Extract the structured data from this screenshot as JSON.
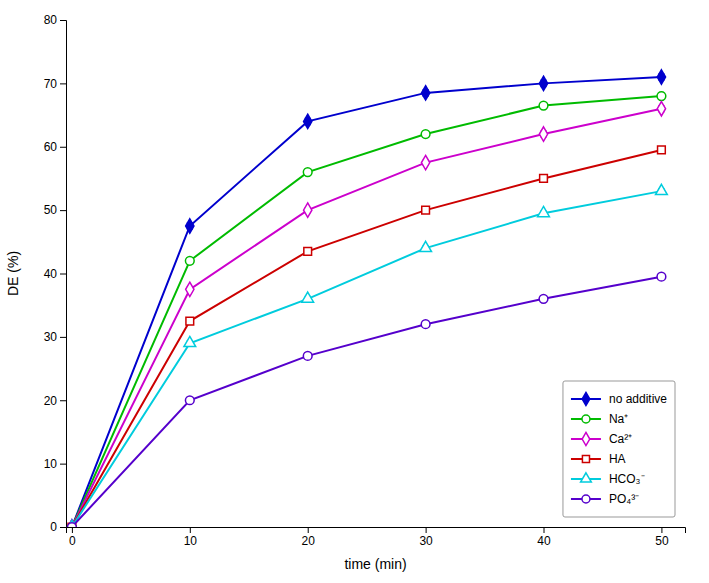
{
  "chart_data": {
    "type": "line",
    "x_label": "time (min)",
    "y_label": "DE (%)",
    "x": [
      0,
      10,
      20,
      30,
      40,
      50
    ],
    "xlim": [
      -0.5,
      52
    ],
    "xticks": [
      0,
      10,
      20,
      30,
      40,
      50
    ],
    "ylim": [
      0,
      80
    ],
    "yticks": [
      0,
      10,
      20,
      30,
      40,
      50,
      60,
      70,
      80
    ],
    "grid": false,
    "legend": "lower right",
    "series": [
      {
        "name": "no additive",
        "color": "#0000CD",
        "marker": "diamond",
        "line_style": "solid",
        "values": [
          0,
          47.5,
          64.0,
          68.5,
          70.0,
          71.0
        ],
        "error": [
          0,
          0.5,
          0.5,
          0.5,
          0.5,
          0.5
        ]
      },
      {
        "name": "Na⁺",
        "color": "#00BB00",
        "marker": "circle-open",
        "line_style": "solid",
        "values": [
          0,
          42.0,
          56.0,
          62.0,
          66.5,
          68.0
        ],
        "error": [
          0,
          0.4,
          0.4,
          0.4,
          0.4,
          0.4
        ]
      },
      {
        "name": "Ca²⁺",
        "color": "#CC00CC",
        "marker": "diamond-open",
        "line_style": "solid",
        "values": [
          0,
          37.5,
          50.0,
          57.5,
          62.0,
          66.0
        ],
        "error": [
          0,
          0.4,
          0.4,
          0.4,
          0.5,
          0.5
        ]
      },
      {
        "name": "HA",
        "color": "#CC0000",
        "marker": "square-open",
        "line_style": "solid",
        "values": [
          0,
          32.5,
          43.5,
          50.0,
          55.0,
          59.5
        ],
        "error": [
          0,
          0.4,
          0.4,
          0.4,
          0.4,
          0.5
        ]
      },
      {
        "name": "HCO₃⁻",
        "color": "#00CCDD",
        "marker": "triangle-open",
        "line_style": "solid",
        "values": [
          0,
          29.0,
          36.0,
          44.0,
          49.5,
          53.0
        ],
        "error": [
          0,
          0.4,
          0.4,
          0.4,
          0.4,
          0.4
        ]
      },
      {
        "name": "PO₄³⁻",
        "color": "#5500CC",
        "marker": "circle-open",
        "line_style": "solid",
        "values": [
          0,
          20.0,
          27.0,
          32.0,
          36.0,
          39.5
        ],
        "error": [
          0,
          0.4,
          0.4,
          0.4,
          0.4,
          0.4
        ]
      }
    ]
  }
}
